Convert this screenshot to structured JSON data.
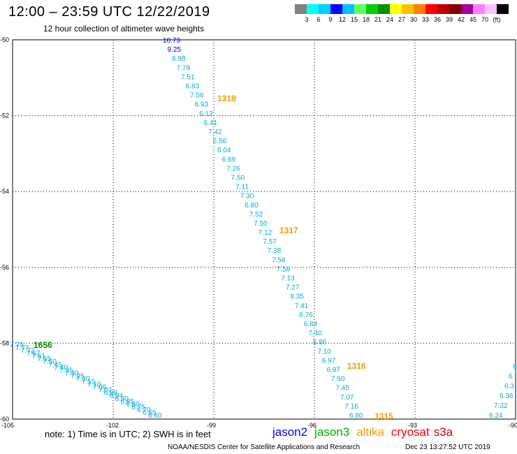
{
  "header": {
    "title": "12:00 – 23:59 UTC 12/22/2019",
    "subtitle": "12 hour collection of altimeter wave heights"
  },
  "legend": {
    "colors": [
      "#808080",
      "#00ffff",
      "#00d0ff",
      "#0000ff",
      "#00c0ff",
      "#60ff60",
      "#00d000",
      "#009000",
      "#ffff00",
      "#ffc000",
      "#ff8000",
      "#ff0000",
      "#c00000",
      "#800000",
      "#a000a0",
      "#ff80ff",
      "#ffc0ff",
      "#000000"
    ],
    "labels": [
      "3",
      "6",
      "9",
      "12",
      "15",
      "18",
      "21",
      "24",
      "27",
      "30",
      "33",
      "36",
      "39",
      "42",
      "45",
      "70",
      "(ft)"
    ]
  },
  "map": {
    "lon_labels": [
      "-105",
      "-102",
      "-99",
      "-96",
      "-93",
      "-90"
    ],
    "lat_labels": [
      "-50",
      "-52",
      "-54",
      "-56",
      "-58",
      "-60"
    ],
    "lon_range": [
      -105,
      -90
    ],
    "lat_range": [
      -60,
      -50
    ],
    "track_color": "#00aadd",
    "track_main": [
      {
        "v": "10.73",
        "c": "#0000cc"
      },
      {
        "v": "9.25",
        "c": "#0000cc"
      },
      {
        "v": "8.98"
      },
      {
        "v": "7.79"
      },
      {
        "v": "7.51"
      },
      {
        "v": "6.83"
      },
      {
        "v": "7.56"
      },
      {
        "v": "6.93"
      },
      {
        "v": "6.13"
      },
      {
        "v": "6.41"
      },
      {
        "v": "7.42"
      },
      {
        "v": "6.56"
      },
      {
        "v": "6.04"
      },
      {
        "v": "6.69"
      },
      {
        "v": "7.26"
      },
      {
        "v": "7.50"
      },
      {
        "v": "7.11"
      },
      {
        "v": "7.30"
      },
      {
        "v": "6.80"
      },
      {
        "v": "7.52"
      },
      {
        "v": "7.50"
      },
      {
        "v": "7.12"
      },
      {
        "v": "7.57"
      },
      {
        "v": "7.38"
      },
      {
        "v": "7.56"
      },
      {
        "v": "7.58"
      },
      {
        "v": "7.13"
      },
      {
        "v": "7.27"
      },
      {
        "v": "8.35"
      },
      {
        "v": "7.41"
      },
      {
        "v": "6.76"
      },
      {
        "v": "6.84"
      },
      {
        "v": "7.40"
      },
      {
        "v": "6.86"
      },
      {
        "v": "7.10"
      },
      {
        "v": "6.97"
      },
      {
        "v": "6.97"
      },
      {
        "v": "7.50"
      },
      {
        "v": "7.45"
      },
      {
        "v": "7.07"
      },
      {
        "v": "7.16"
      },
      {
        "v": "6.80"
      }
    ],
    "track_left": [
      "7.79",
      "7.77",
      "7.72",
      "7.67",
      "7.61",
      "7.55",
      "7.50",
      "7.45",
      "7.40",
      "7.35",
      "7.30",
      "7.25",
      "7.20",
      "7.15",
      "7.10",
      "7.06",
      "7.02",
      "6.98",
      "6.94",
      "6.90",
      "6.85",
      "6.80",
      "6.75",
      "6.70",
      "6.65",
      "6.60"
    ],
    "track_right": [
      "7.32",
      "6.24",
      "6.36",
      "6.3",
      "6.",
      "6"
    ],
    "passes": [
      {
        "label": "1318",
        "color": "#ff9900"
      },
      {
        "label": "1317",
        "color": "#ff9900"
      },
      {
        "label": "1316",
        "color": "#ff9900"
      },
      {
        "label": "1315",
        "color": "#ff9900"
      },
      {
        "label": "1656",
        "color": "#008800"
      }
    ]
  },
  "footer": {
    "note": "note: 1) Time is in UTC; 2) SWH is in feet",
    "missions": [
      {
        "name": "jason2",
        "color": "#0000ff"
      },
      {
        "name": "jason3",
        "color": "#00aa00"
      },
      {
        "name": "altika",
        "color": "#ff9900"
      },
      {
        "name": "cryosat",
        "color": "#ff0000"
      },
      {
        "name": "s3a",
        "color": "#cc0000"
      }
    ],
    "credit": "NOAA/NESDIS Center for Satellite Applications and Research",
    "timestamp": "Dec 23 13:27:52 UTC 2019"
  }
}
